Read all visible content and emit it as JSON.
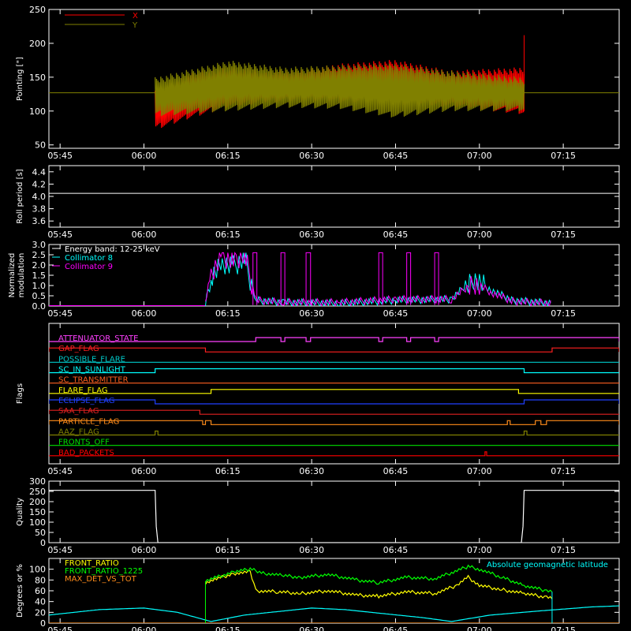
{
  "chart_data": [
    {
      "type": "line",
      "ylabel": "Pointing [\"]",
      "ylim": [
        45,
        250
      ],
      "yticks": [
        50,
        100,
        150,
        200,
        250
      ],
      "x_ticks": [
        "05:45",
        "06:00",
        "06:15",
        "06:30",
        "06:45",
        "07:00",
        "07:15"
      ],
      "x_range": [
        "05:43",
        "07:25"
      ],
      "legend": [
        {
          "name": "X",
          "color": "#ff0000"
        },
        {
          "name": "Y",
          "color": "#808000"
        }
      ],
      "series": [
        {
          "name": "X",
          "color": "#ff0000",
          "start": "06:02",
          "end": "07:08",
          "band": [
            [
              0,
              130,
              72
            ],
            [
              0.1,
              158,
              90
            ],
            [
              0.2,
              165,
              105
            ],
            [
              0.3,
              160,
              112
            ],
            [
              0.4,
              162,
              115
            ],
            [
              0.5,
              170,
              113
            ],
            [
              0.65,
              176,
              110
            ],
            [
              0.8,
              160,
              106
            ],
            [
              1,
              165,
              95
            ]
          ],
          "spike": {
            "at": "07:08",
            "value": 212
          }
        },
        {
          "name": "Y",
          "color": "#808000",
          "start": "06:02",
          "end": "07:08",
          "band": [
            [
              0,
              150,
              92
            ],
            [
              0.2,
              175,
              100
            ],
            [
              0.35,
              165,
              105
            ],
            [
              0.5,
              168,
              103
            ],
            [
              0.65,
              170,
              90
            ],
            [
              0.8,
              160,
              100
            ],
            [
              1,
              150,
              100
            ]
          ]
        }
      ],
      "reference_line": {
        "value": 127,
        "color": "#808000"
      }
    },
    {
      "type": "line",
      "ylabel": "Roll period [s]",
      "ylim": [
        3.5,
        4.5
      ],
      "yticks": [
        3.6,
        3.8,
        4.0,
        4.2,
        4.4
      ],
      "x_ticks": [
        "05:45",
        "06:00",
        "06:15",
        "06:30",
        "06:45",
        "07:00",
        "07:15"
      ],
      "x_range": [
        "05:43",
        "07:25"
      ],
      "series": [
        {
          "name": "",
          "color": "#ffffff",
          "constant": 4.05
        }
      ]
    },
    {
      "type": "line",
      "ylabel": [
        "Normalized",
        "modulation"
      ],
      "ylim": [
        0,
        3.0
      ],
      "yticks": [
        0.0,
        0.5,
        1.0,
        1.5,
        2.0,
        2.5,
        3.0
      ],
      "x_ticks": [
        "05:45",
        "06:00",
        "06:15",
        "06:30",
        "06:45",
        "07:00",
        "07:15"
      ],
      "x_range": [
        "05:43",
        "07:25"
      ],
      "legend": [
        {
          "name": "Energy band: 12-25 keV",
          "color": "#ffffff"
        },
        {
          "name": "Collimator 8",
          "color": "#00ffff"
        },
        {
          "name": "Collimator 9",
          "color": "#ff00ff"
        }
      ],
      "series": [
        {
          "name": "Collimator 8",
          "color": "#00ffff",
          "start": "06:11",
          "end": "07:13",
          "points": [
            [
              "06:11",
              0.2
            ],
            [
              "06:12",
              1.5
            ],
            [
              "06:14",
              2.2
            ],
            [
              "06:16",
              2.0
            ],
            [
              "06:18",
              2.4
            ],
            [
              "06:20",
              0.3
            ],
            [
              "06:25",
              0.2
            ],
            [
              "06:35",
              0.15
            ],
            [
              "06:45",
              0.3
            ],
            [
              "06:55",
              0.35
            ],
            [
              "06:59",
              1.4
            ],
            [
              "07:02",
              0.8
            ],
            [
              "07:06",
              0.3
            ],
            [
              "07:13",
              0.15
            ]
          ]
        },
        {
          "name": "Collimator 9",
          "color": "#ff00ff",
          "start": "06:11",
          "end": "07:13",
          "points": [
            [
              "06:11",
              0.3
            ],
            [
              "06:12",
              1.7
            ],
            [
              "06:14",
              2.5
            ],
            [
              "06:16",
              2.3
            ],
            [
              "06:18",
              2.6
            ],
            [
              "06:20",
              0.3
            ],
            [
              "06:25",
              0.2
            ],
            [
              "06:35",
              0.2
            ],
            [
              "06:45",
              0.35
            ],
            [
              "06:55",
              0.35
            ],
            [
              "06:59",
              1.2
            ],
            [
              "07:02",
              0.7
            ],
            [
              "07:06",
              0.25
            ],
            [
              "07:13",
              0.15
            ]
          ]
        }
      ],
      "pulses": {
        "color": "#ff00ff",
        "value": 2.6,
        "times": [
          [
            "06:19.5",
            "06:20.2"
          ],
          [
            "06:24.5",
            "06:25.2"
          ],
          [
            "06:29",
            "06:29.8"
          ],
          [
            "06:42",
            "06:42.7"
          ],
          [
            "06:47",
            "06:47.7"
          ],
          [
            "06:52",
            "06:52.7"
          ]
        ]
      }
    },
    {
      "type": "timeline",
      "ylabel": "Flags",
      "x_ticks": [
        "05:45",
        "06:00",
        "06:15",
        "06:30",
        "06:45",
        "07:00",
        "07:15"
      ],
      "x_range": [
        "05:43",
        "07:25"
      ],
      "flags": [
        {
          "name": "ATTENUATOR_STATE",
          "color": "#ff40ff",
          "intervals": [
            [
              "06:20",
              "06:24.5"
            ],
            [
              "06:25.2",
              "06:29"
            ],
            [
              "06:29.8",
              "06:42"
            ],
            [
              "06:42.7",
              "06:47"
            ],
            [
              "06:47.7",
              "06:52"
            ],
            [
              "06:52.7",
              "07:25"
            ]
          ]
        },
        {
          "name": "GAP_FLAG",
          "color": "#ff2020",
          "intervals": [
            [
              "05:43",
              "06:11"
            ],
            [
              "07:13",
              "07:25"
            ]
          ]
        },
        {
          "name": "POSSIBLE_FLARE",
          "color": "#00c8c8",
          "intervals": []
        },
        {
          "name": "SC_IN_SUNLIGHT",
          "color": "#00ffff",
          "intervals": [
            [
              "06:02",
              "07:08"
            ]
          ]
        },
        {
          "name": "SC_TRANSMITTER",
          "color": "#ff6020",
          "intervals": []
        },
        {
          "name": "FLARE_FLAG",
          "color": "#ffff00",
          "intervals": [
            [
              "06:12",
              "07:07"
            ]
          ]
        },
        {
          "name": "ECLIPSE_FLAG",
          "color": "#2040ff",
          "intervals": [
            [
              "05:43",
              "06:02"
            ],
            [
              "07:08",
              "07:25"
            ]
          ]
        },
        {
          "name": "SAA_FLAG",
          "color": "#e02020",
          "intervals": [
            [
              "05:43",
              "06:10"
            ]
          ]
        },
        {
          "name": "PARTICLE_FLAG",
          "color": "#ff8c1a",
          "intervals": [
            [
              "05:43",
              "06:10.5"
            ],
            [
              "06:11",
              "06:12"
            ],
            [
              "07:05",
              "07:05.5"
            ],
            [
              "07:10",
              "07:11"
            ],
            [
              "07:12",
              "07:25"
            ]
          ]
        },
        {
          "name": "AAZ_FLAG",
          "color": "#808000",
          "intervals": [
            [
              "06:02",
              "06:02.5"
            ],
            [
              "07:08",
              "07:08.5"
            ]
          ]
        },
        {
          "name": "FRONTS_OFF",
          "color": "#00e000",
          "intervals": []
        },
        {
          "name": "BAD_PACKETS",
          "color": "#ff0000",
          "intervals": [
            [
              "07:01",
              "07:01.3"
            ]
          ]
        }
      ]
    },
    {
      "type": "line",
      "ylabel": "Quality",
      "ylim": [
        0,
        300
      ],
      "yticks": [
        0,
        50,
        100,
        150,
        200,
        250,
        300
      ],
      "x_ticks": [
        "05:45",
        "06:00",
        "06:15",
        "06:30",
        "06:45",
        "07:00",
        "07:15"
      ],
      "x_range": [
        "05:43",
        "07:25"
      ],
      "series": [
        {
          "name": "",
          "color": "#ffffff",
          "points": [
            [
              "05:43",
              255
            ],
            [
              "06:02",
              255
            ],
            [
              "06:02.2",
              80
            ],
            [
              "06:02.5",
              0
            ],
            [
              "07:07.5",
              0
            ],
            [
              "07:07.8",
              80
            ],
            [
              "07:08",
              255
            ],
            [
              "07:25",
              255
            ]
          ]
        }
      ]
    },
    {
      "type": "line",
      "ylabel": "Degrees or %",
      "ylim": [
        0,
        120
      ],
      "yticks": [
        0,
        20,
        40,
        60,
        80,
        100
      ],
      "x_ticks": [
        "05:45",
        "06:00",
        "06:15",
        "06:30",
        "06:45",
        "07:00",
        "07:15"
      ],
      "x_range": [
        "05:43",
        "07:25"
      ],
      "legend": [
        {
          "name": "FRONT_RATIO",
          "color": "#ffff00"
        },
        {
          "name": "FRONT_RATIO_1225",
          "color": "#00ff00"
        },
        {
          "name": "MAX_DET_VS_TOT",
          "color": "#ff8c1a"
        }
      ],
      "right_label": {
        "text": "Absolute geomagnetic latitude",
        "color": "#00ffff"
      },
      "series": [
        {
          "name": "FRONT_RATIO",
          "color": "#ffff00",
          "points": [
            [
              "06:11",
              75
            ],
            [
              "06:13",
              82
            ],
            [
              "06:16",
              92
            ],
            [
              "06:19",
              95
            ],
            [
              "06:20",
              60
            ],
            [
              "06:24",
              58
            ],
            [
              "06:28",
              55
            ],
            [
              "06:33",
              60
            ],
            [
              "06:38",
              52
            ],
            [
              "06:42",
              50
            ],
            [
              "06:47",
              58
            ],
            [
              "06:52",
              55
            ],
            [
              "06:56",
              70
            ],
            [
              "06:58",
              85
            ],
            [
              "07:00",
              70
            ],
            [
              "07:04",
              62
            ],
            [
              "07:08",
              55
            ],
            [
              "07:12",
              48
            ],
            [
              "07:13",
              45
            ]
          ]
        },
        {
          "name": "FRONT_RATIO_1225",
          "color": "#00ff00",
          "points": [
            [
              "06:11",
              78
            ],
            [
              "06:13",
              85
            ],
            [
              "06:16",
              95
            ],
            [
              "06:19",
              100
            ],
            [
              "06:22",
              92
            ],
            [
              "06:25",
              88
            ],
            [
              "06:28",
              85
            ],
            [
              "06:33",
              90
            ],
            [
              "06:38",
              80
            ],
            [
              "06:42",
              75
            ],
            [
              "06:47",
              85
            ],
            [
              "06:52",
              82
            ],
            [
              "06:58",
              105
            ],
            [
              "07:00",
              100
            ],
            [
              "07:04",
              85
            ],
            [
              "07:08",
              70
            ],
            [
              "07:12",
              60
            ],
            [
              "07:13",
              58
            ]
          ]
        },
        {
          "name": "MAX_DET_VS_TOT",
          "color": "#ff8c1a",
          "points": [
            [
              "05:43",
              0
            ],
            [
              "07:25",
              0
            ]
          ]
        },
        {
          "name": "Absolute geomagnetic latitude",
          "color": "#00ffff",
          "points": [
            [
              "05:43",
              15
            ],
            [
              "05:52",
              25
            ],
            [
              "06:00",
              28
            ],
            [
              "06:06",
              20
            ],
            [
              "06:12",
              3
            ],
            [
              "06:18",
              15
            ],
            [
              "06:30",
              28
            ],
            [
              "06:36",
              25
            ],
            [
              "06:50",
              10
            ],
            [
              "06:55",
              3
            ],
            [
              "07:02",
              15
            ],
            [
              "07:10",
              22
            ],
            [
              "07:20",
              30
            ],
            [
              "07:25",
              32
            ]
          ]
        }
      ]
    }
  ]
}
